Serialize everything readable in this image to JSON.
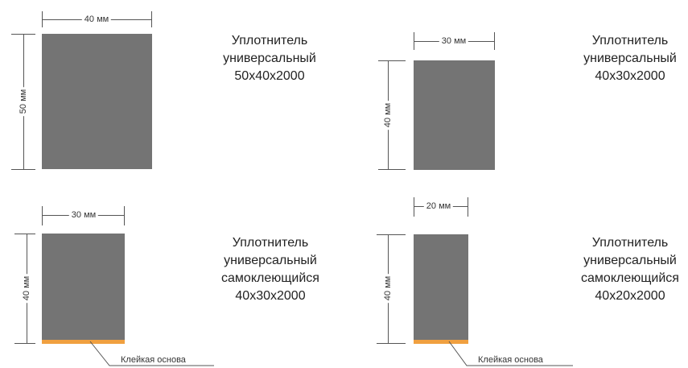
{
  "items": [
    {
      "width_label": "40 мм",
      "height_label": "50 мм",
      "title_lines": [
        "Уплотнитель",
        "универсальный",
        "50x40x2000"
      ],
      "adhesive_label": ""
    },
    {
      "width_label": "30 мм",
      "height_label": "40 мм",
      "title_lines": [
        "Уплотнитель",
        "универсальный",
        "40x30x2000"
      ],
      "adhesive_label": ""
    },
    {
      "width_label": "30 мм",
      "height_label": "40 мм",
      "title_lines": [
        "Уплотнитель",
        "универсальный",
        "самоклеющийся",
        "40x30x2000"
      ],
      "adhesive_label": "Клейкая основа"
    },
    {
      "width_label": "20 мм",
      "height_label": "40 мм",
      "title_lines": [
        "Уплотнитель",
        "универсальный",
        "самоклеющийся",
        "40x20x2000"
      ],
      "adhesive_label": "Клейкая основа"
    }
  ],
  "colors": {
    "block": "#747474",
    "adhesive": "#f0a040",
    "dimension_line": "#555555"
  }
}
